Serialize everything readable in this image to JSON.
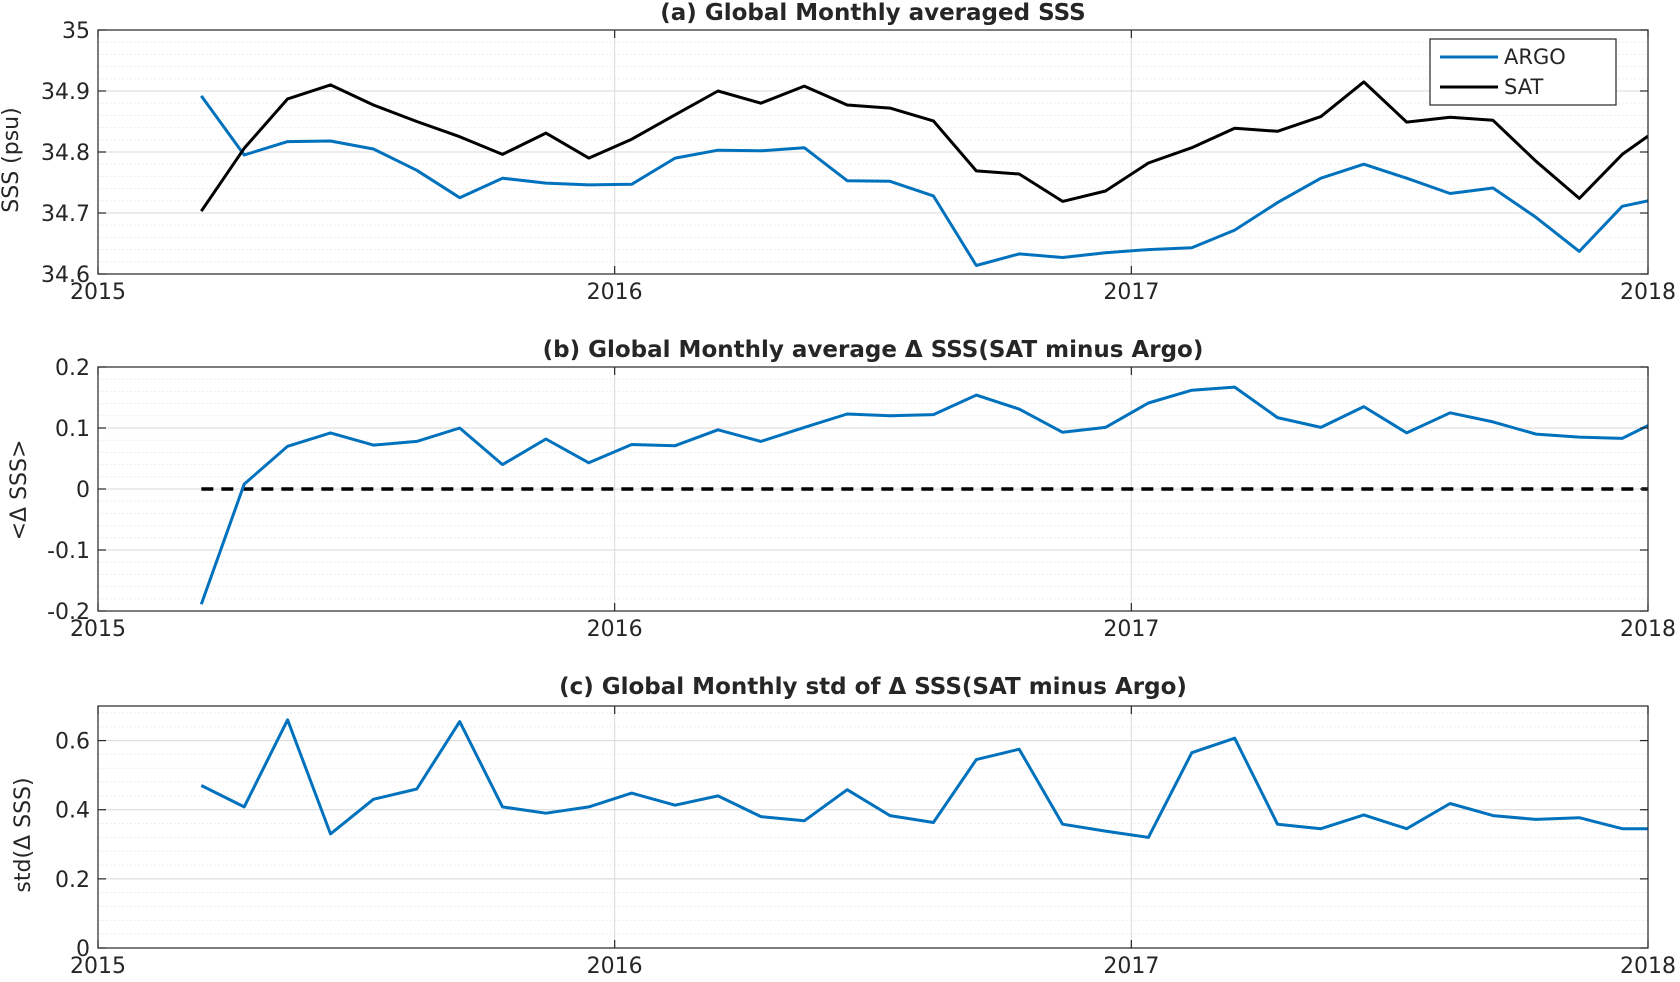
{
  "colors": {
    "argo": "#0072BD",
    "sat": "#000000",
    "grid": "#d9d9d9",
    "minor_grid": "#e6e6e6",
    "axis": "#262626",
    "zero_line": "#000000"
  },
  "chart_data": [
    {
      "type": "line",
      "title": "(a) Global Monthly averaged SSS",
      "xlabel": "",
      "ylabel": "SSS (psu)",
      "xlim": [
        2015,
        2018
      ],
      "ylim": [
        34.6,
        35
      ],
      "xticks": [
        "2015",
        "2016",
        "2017",
        "2018"
      ],
      "yticks": [
        "34.6",
        "34.7",
        "34.8",
        "34.9",
        "35"
      ],
      "grid": true,
      "legend": "top-right",
      "x": [
        2015.2,
        2015.283,
        2015.367,
        2015.45,
        2015.533,
        2015.617,
        2015.7,
        2015.783,
        2015.867,
        2015.95,
        2016.033,
        2016.117,
        2016.2,
        2016.283,
        2016.367,
        2016.45,
        2016.533,
        2016.617,
        2016.7,
        2016.783,
        2016.867,
        2016.95,
        2017.033,
        2017.117,
        2017.2,
        2017.283,
        2017.367,
        2017.45,
        2017.533,
        2017.617,
        2017.7,
        2017.783,
        2017.867,
        2017.95,
        2018.0
      ],
      "series": [
        {
          "name": "ARGO",
          "color": "#0072BD",
          "values": [
            34.892,
            34.795,
            34.817,
            34.818,
            34.805,
            34.77,
            34.725,
            34.757,
            34.749,
            34.746,
            34.747,
            34.79,
            34.803,
            34.802,
            34.807,
            34.753,
            34.752,
            34.728,
            34.614,
            34.633,
            34.627,
            34.635,
            34.64,
            34.643,
            34.672,
            34.717,
            34.757,
            34.78,
            34.757,
            34.732,
            34.741,
            34.693,
            34.637,
            34.711,
            34.72
          ]
        },
        {
          "name": "SAT",
          "color": "#000000",
          "values": [
            34.703,
            34.806,
            34.887,
            34.91,
            34.877,
            34.85,
            34.825,
            34.796,
            34.831,
            34.79,
            34.821,
            34.861,
            34.9,
            34.88,
            34.908,
            34.877,
            34.872,
            34.851,
            34.769,
            34.764,
            34.719,
            34.736,
            34.782,
            34.807,
            34.839,
            34.834,
            34.858,
            34.915,
            34.849,
            34.857,
            34.852,
            34.785,
            34.724,
            34.796,
            34.826
          ]
        }
      ]
    },
    {
      "type": "line",
      "title": "(b) Global Monthly average Δ SSS(SAT minus Argo)",
      "xlabel": "",
      "ylabel": "<Δ SSS>",
      "xlim": [
        2015,
        2018
      ],
      "ylim": [
        -0.2,
        0.2
      ],
      "xticks": [
        "2015",
        "2016",
        "2017",
        "2018"
      ],
      "yticks": [
        "-0.2",
        "-0.1",
        "0",
        "0.1",
        "0.2"
      ],
      "grid": true,
      "reference_line": 0,
      "x": [
        2015.2,
        2015.283,
        2015.367,
        2015.45,
        2015.533,
        2015.617,
        2015.7,
        2015.783,
        2015.867,
        2015.95,
        2016.033,
        2016.117,
        2016.2,
        2016.283,
        2016.367,
        2016.45,
        2016.533,
        2016.617,
        2016.7,
        2016.783,
        2016.867,
        2016.95,
        2017.033,
        2017.117,
        2017.2,
        2017.283,
        2017.367,
        2017.45,
        2017.533,
        2017.617,
        2017.7,
        2017.783,
        2017.867,
        2017.95,
        2018.0
      ],
      "series": [
        {
          "color": "#0072BD",
          "values": [
            -0.189,
            0.008,
            0.07,
            0.092,
            0.072,
            0.078,
            0.1,
            0.04,
            0.082,
            0.043,
            0.073,
            0.071,
            0.097,
            0.078,
            0.101,
            0.123,
            0.12,
            0.122,
            0.154,
            0.131,
            0.093,
            0.101,
            0.141,
            0.162,
            0.167,
            0.117,
            0.101,
            0.135,
            0.092,
            0.125,
            0.11,
            0.09,
            0.085,
            0.083,
            0.104
          ]
        }
      ]
    },
    {
      "type": "line",
      "title": "(c) Global Monthly std of Δ SSS(SAT minus Argo)",
      "xlabel": "",
      "ylabel": "std(Δ SSS)",
      "xlim": [
        2015,
        2018
      ],
      "ylim": [
        0,
        0.7
      ],
      "xticks": [
        "2015",
        "2016",
        "2017",
        "2018"
      ],
      "yticks": [
        "0",
        "0.2",
        "0.4",
        "0.6"
      ],
      "grid": true,
      "x": [
        2015.2,
        2015.283,
        2015.367,
        2015.45,
        2015.533,
        2015.617,
        2015.7,
        2015.783,
        2015.867,
        2015.95,
        2016.033,
        2016.117,
        2016.2,
        2016.283,
        2016.367,
        2016.45,
        2016.533,
        2016.617,
        2016.7,
        2016.783,
        2016.867,
        2016.95,
        2017.033,
        2017.117,
        2017.2,
        2017.283,
        2017.367,
        2017.45,
        2017.533,
        2017.617,
        2017.7,
        2017.783,
        2017.867,
        2017.95,
        2018.0
      ],
      "series": [
        {
          "color": "#0072BD",
          "values": [
            0.47,
            0.408,
            0.66,
            0.33,
            0.43,
            0.46,
            0.655,
            0.408,
            0.39,
            0.408,
            0.448,
            0.413,
            0.44,
            0.38,
            0.368,
            0.458,
            0.383,
            0.363,
            0.545,
            0.575,
            0.358,
            0.338,
            0.32,
            0.565,
            0.607,
            0.358,
            0.345,
            0.385,
            0.345,
            0.418,
            0.383,
            0.372,
            0.377,
            0.345,
            0.345
          ]
        }
      ]
    }
  ]
}
